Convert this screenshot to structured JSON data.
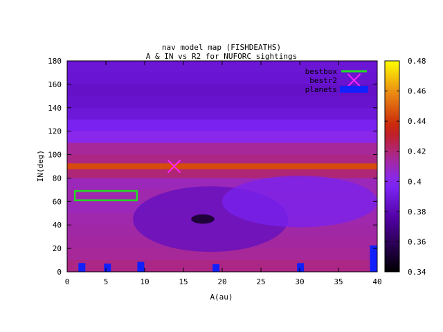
{
  "chart_data": {
    "type": "heatmap",
    "title": "nav model map (FISHDEATHS)",
    "subtitle": "A & IN vs R2 for NUFORC sightings",
    "xlabel": "A(au)",
    "ylabel": "IN(deg)",
    "xlim": [
      0,
      40
    ],
    "ylim": [
      0,
      180
    ],
    "xticks": [
      "0",
      "5",
      "10",
      "15",
      "20",
      "25",
      "30",
      "35",
      "40"
    ],
    "yticks": [
      "0",
      "20",
      "40",
      "60",
      "80",
      "100",
      "120",
      "140",
      "160",
      "180"
    ],
    "colorbar": {
      "range": [
        0.34,
        0.48
      ],
      "ticks": [
        "0.34",
        "0.36",
        "0.38",
        "0.4",
        "0.42",
        "0.44",
        "0.46",
        "0.48"
      ]
    },
    "legend": {
      "placement": "top-right",
      "entries": [
        {
          "label": "bestbox",
          "color": "#22dd22",
          "kind": "line"
        },
        {
          "label": "bestr2",
          "color": "#ff22ff",
          "kind": "cross"
        },
        {
          "label": "planets",
          "color": "#1020ff",
          "kind": "box"
        }
      ]
    },
    "bestbox": {
      "a": [
        1,
        9
      ],
      "in": [
        61,
        69
      ]
    },
    "bestr2": {
      "a": 13.8,
      "in": 90
    },
    "planets": [
      {
        "a": 1.9,
        "in": 7.5
      },
      {
        "a": 5.2,
        "in": 7.0
      },
      {
        "a": 9.5,
        "in": 8.5
      },
      {
        "a": 19.2,
        "in": 6.5
      },
      {
        "a": 30.1,
        "in": 7.5
      },
      {
        "a": 39.5,
        "in": 22.5
      }
    ],
    "heatmap_rows": [
      {
        "in": 175,
        "value": 0.388
      },
      {
        "in": 165,
        "value": 0.387
      },
      {
        "in": 155,
        "value": 0.385
      },
      {
        "in": 145,
        "value": 0.386
      },
      {
        "in": 135,
        "value": 0.389
      },
      {
        "in": 125,
        "value": 0.395
      },
      {
        "in": 115,
        "value": 0.402
      },
      {
        "in": 105,
        "value": 0.415
      },
      {
        "in": 95,
        "value": 0.418
      },
      {
        "in": 90,
        "value": 0.445
      },
      {
        "in": 85,
        "value": 0.42
      },
      {
        "in": 75,
        "value": 0.41
      },
      {
        "in": 65,
        "value": 0.412
      },
      {
        "in": 55,
        "value": 0.41
      },
      {
        "in": 45,
        "value": 0.412
      },
      {
        "in": 35,
        "value": 0.413
      },
      {
        "in": 25,
        "value": 0.414
      },
      {
        "in": 15,
        "value": 0.415
      },
      {
        "in": 5,
        "value": 0.418
      }
    ],
    "heatmap_features": [
      {
        "kind": "low-region",
        "a_center": 18.5,
        "in_center": 45,
        "a_radius": 10,
        "in_radius": 28,
        "value": 0.383
      },
      {
        "kind": "low-region",
        "a_center": 30,
        "in_center": 60,
        "a_radius": 10,
        "in_radius": 22,
        "value": 0.395
      },
      {
        "kind": "minimum",
        "a_center": 17.5,
        "in_center": 45,
        "a_radius": 1.5,
        "in_radius": 4,
        "value": 0.35
      }
    ]
  }
}
